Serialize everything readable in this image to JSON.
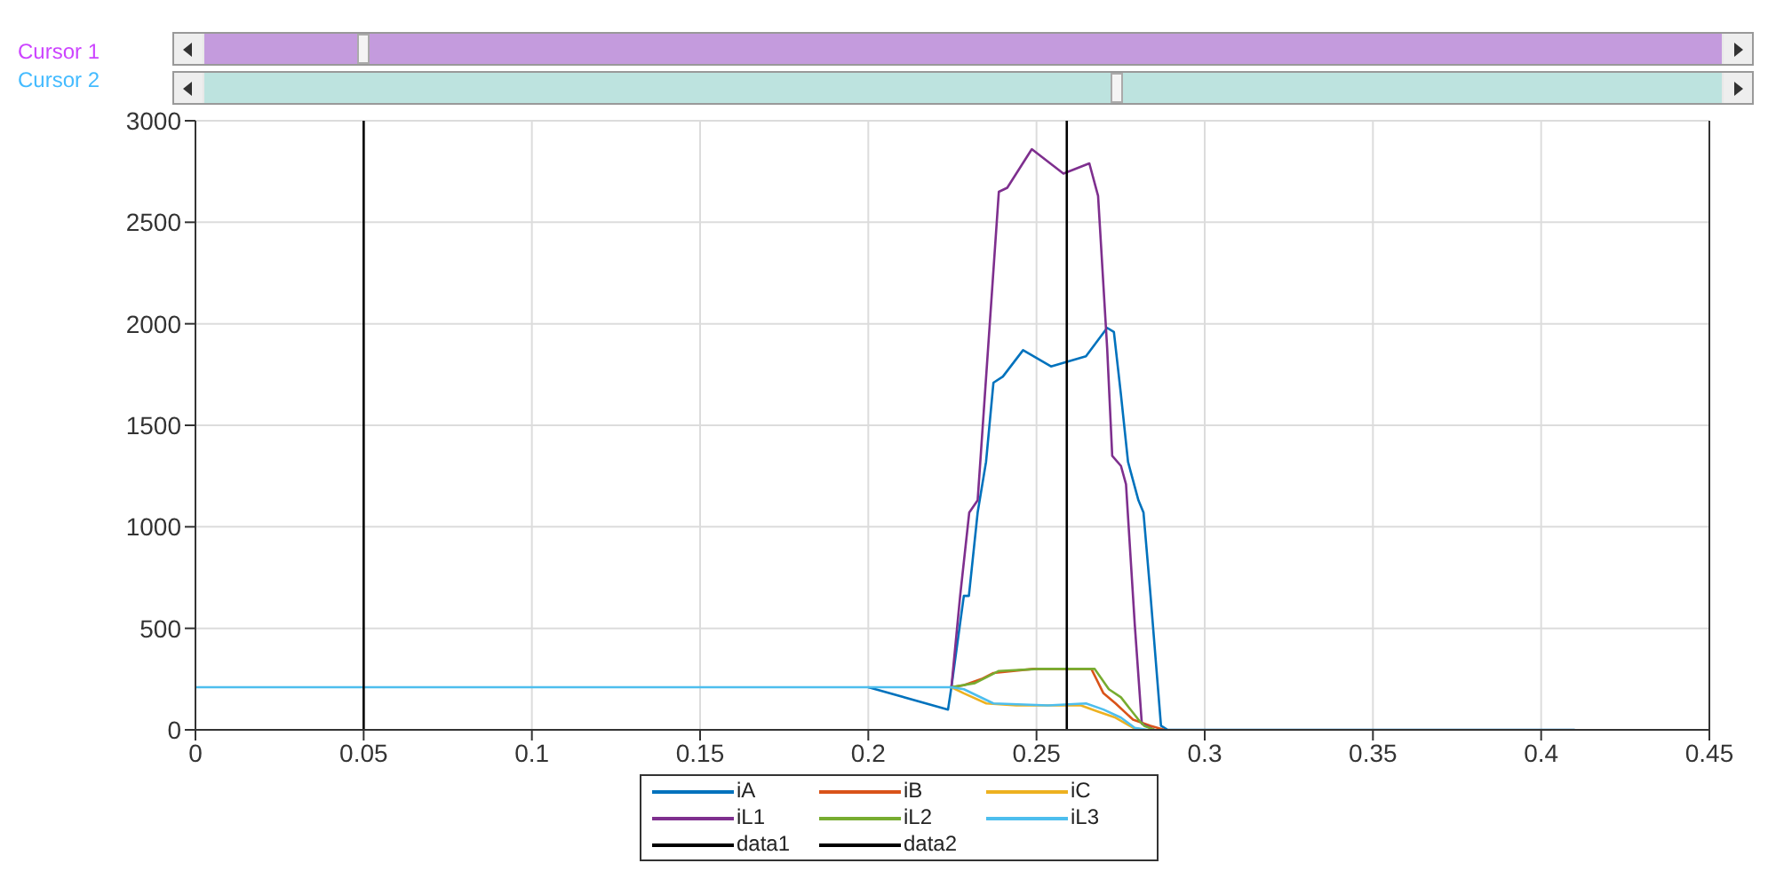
{
  "chart_data": {
    "type": "line",
    "annotations": [
      "Cursor 1",
      "Cursor 2"
    ],
    "xlim": [
      0,
      0.45
    ],
    "xticks": [
      0,
      0.05,
      0.1,
      0.15,
      0.2,
      0.25,
      0.3,
      0.35,
      0.4,
      0.45
    ],
    "ylim": [
      0,
      3000
    ],
    "yticks": [
      0,
      500,
      1000,
      1500,
      2000,
      2500,
      3000
    ],
    "grid": true,
    "legend": "bottom",
    "marker": "none",
    "line_style": "solid",
    "series": [
      {
        "name": "iA",
        "color": "#0072bd",
        "x": [
          0.2,
          0.2237,
          0.2247,
          0.2284,
          0.2299,
          0.2325,
          0.235,
          0.2372,
          0.24,
          0.246,
          0.2543,
          0.2647,
          0.271,
          0.273,
          0.2751,
          0.2772,
          0.2803,
          0.2818,
          0.2839,
          0.287,
          0.289,
          0.41
        ],
        "values": [
          210,
          100,
          210,
          660,
          660,
          1070,
          1320,
          1710,
          1740,
          1870,
          1790,
          1840,
          1980,
          1960,
          1650,
          1320,
          1130,
          1070,
          660,
          20,
          0,
          0
        ]
      },
      {
        "name": "iB",
        "color": "#d95319",
        "x": [
          0.2247,
          0.2284,
          0.2336,
          0.2372,
          0.2491,
          0.2663,
          0.2699,
          0.2735,
          0.2787,
          0.2839,
          0.288
        ],
        "values": [
          210,
          220,
          250,
          280,
          300,
          300,
          180,
          130,
          50,
          20,
          0
        ]
      },
      {
        "name": "iC",
        "color": "#edb120",
        "x": [
          0.2247,
          0.2284,
          0.2351,
          0.244,
          0.2632,
          0.2683,
          0.2735,
          0.2787,
          0.282
        ],
        "values": [
          210,
          180,
          130,
          120,
          120,
          90,
          60,
          10,
          0
        ]
      },
      {
        "name": "iL1",
        "color": "#7e2f8e",
        "x": [
          0.2247,
          0.2273,
          0.23,
          0.2325,
          0.2388,
          0.2413,
          0.2486,
          0.258,
          0.2657,
          0.2683,
          0.271,
          0.2725,
          0.2751,
          0.2766,
          0.2792,
          0.2813,
          0.285
        ],
        "values": [
          210,
          660,
          1070,
          1130,
          2650,
          2670,
          2860,
          2740,
          2790,
          2630,
          1880,
          1350,
          1300,
          1210,
          520,
          30,
          0
        ]
      },
      {
        "name": "iL2",
        "color": "#77ac30",
        "x": [
          0.2247,
          0.2317,
          0.2388,
          0.2507,
          0.2673,
          0.2715,
          0.2751,
          0.2803,
          0.282,
          0.285
        ],
        "values": [
          210,
          230,
          290,
          300,
          300,
          200,
          160,
          50,
          20,
          0
        ]
      },
      {
        "name": "iL3",
        "color": "#4dbeee",
        "x": [
          0,
          0.1,
          0.2,
          0.2247,
          0.2284,
          0.2372,
          0.2534,
          0.2647,
          0.2699,
          0.2751,
          0.2792,
          0.283
        ],
        "values": [
          210,
          210,
          210,
          210,
          200,
          130,
          120,
          130,
          100,
          60,
          10,
          0
        ]
      },
      {
        "name": "data1",
        "color": "#000000",
        "x": [
          0.05,
          0.05
        ],
        "values": [
          0,
          3000
        ]
      },
      {
        "name": "data2",
        "color": "#000000",
        "x": [
          0.259,
          0.259
        ],
        "values": [
          0,
          3000
        ]
      }
    ]
  }
}
